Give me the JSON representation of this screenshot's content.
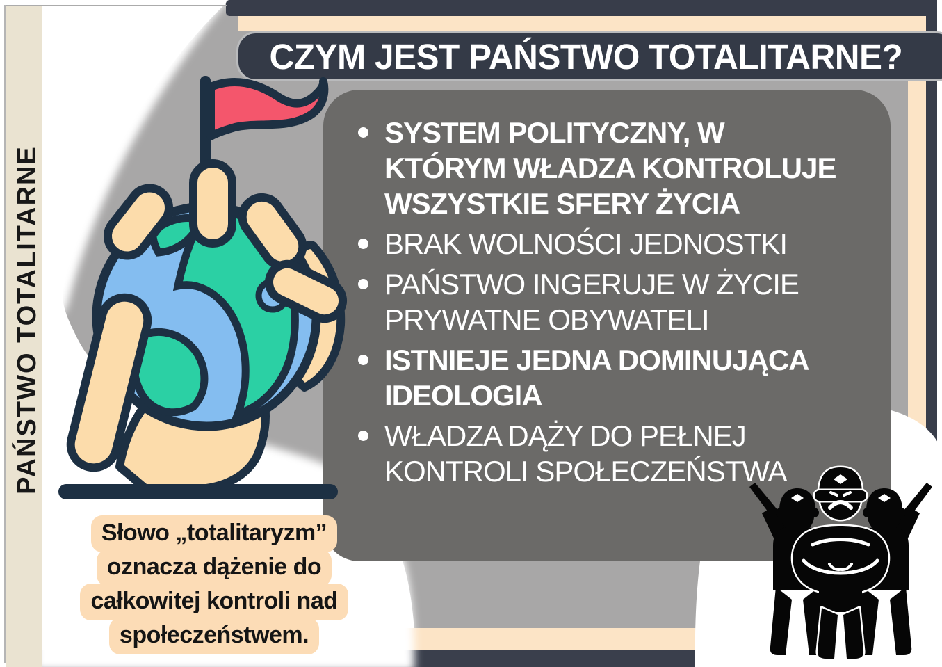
{
  "colors": {
    "cream": "#eae3d1",
    "navy": "#343a47",
    "frame_navy": "#383d4a",
    "peach": "#fce4c6",
    "peach_highlight": "#fcdcb6",
    "background_gray": "#a8a7a7",
    "card_gray": "#6b6a68",
    "flag_red": "#f4566c",
    "globe_blue": "#84bdf0",
    "globe_green": "#2bd0a4",
    "skin": "#fcdcab",
    "outline_navy": "#1d3043",
    "silhouette_black": "#060606"
  },
  "sidebar": {
    "label": "PAŃSTWO TOTALITARNE"
  },
  "header": {
    "title": "CZYM JEST PAŃSTWO TOTALITARNE?"
  },
  "card": {
    "bullets": [
      {
        "bold": true,
        "lines": [
          "SYSTEM POLITYCZNY, W",
          "KTÓRYM WŁADZA KONTROLUJE",
          "WSZYSTKIE SFERY ŻYCIA"
        ]
      },
      {
        "bold": false,
        "lines": [
          "BRAK WOLNOŚCI JEDNOSTKI"
        ]
      },
      {
        "bold": false,
        "lines": [
          "PAŃSTWO INGERUJE W ŻYCIE",
          "PRYWATNE OBYWATELI"
        ]
      },
      {
        "bold": true,
        "lines": [
          "ISTNIEJE JEDNA DOMINUJĄCA",
          "IDEOLOGIA"
        ]
      },
      {
        "bold": false,
        "lines": [
          "WŁADZA DĄŻY DO PEŁNEJ",
          "KONTROLI SPOŁECZEŃSTWA"
        ]
      }
    ]
  },
  "note": {
    "lines": [
      "Słowo „totalitaryzm”",
      "oznacza dążenie do",
      "całkowitej kontroli nad",
      "społeczeństwem."
    ]
  },
  "illustrations": {
    "globe": "hand-holding-globe-with-red-flag-icon",
    "soldiers": "three-soldiers-with-rifles-silhouette-icon"
  }
}
